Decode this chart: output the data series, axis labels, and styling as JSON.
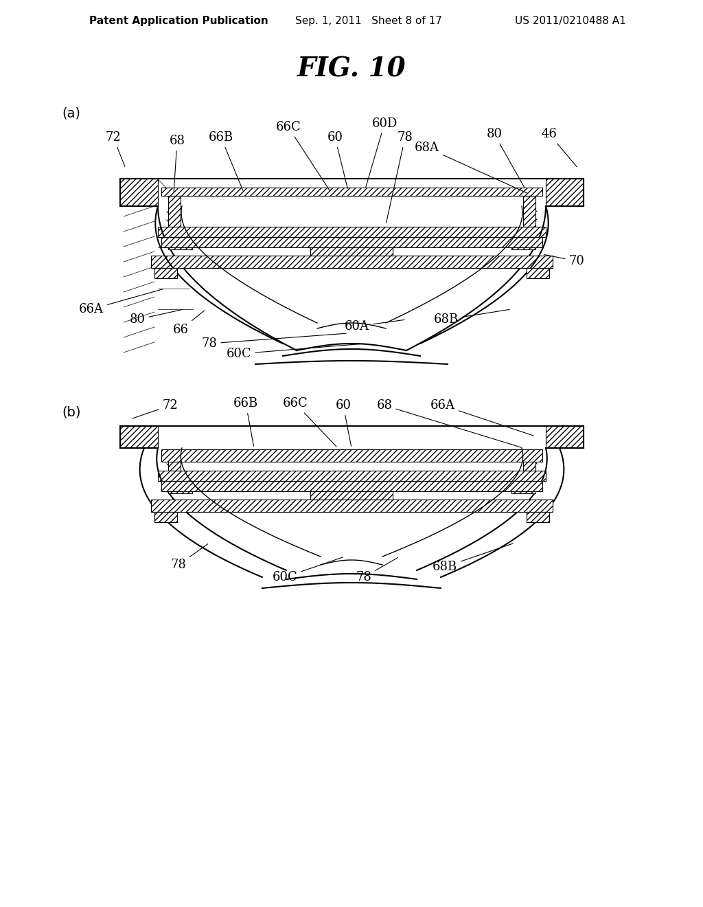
{
  "title": "FIG. 10",
  "header_left": "Patent Application Publication",
  "header_mid": "Sep. 1, 2011   Sheet 8 of 17",
  "header_right": "US 2011/0210488 A1",
  "bg_color": "#ffffff",
  "label_a": "(a)",
  "label_b": "(b)",
  "fig_title_fontsize": 28,
  "header_fontsize": 11,
  "label_fontsize": 14,
  "annotation_fontsize": 13
}
